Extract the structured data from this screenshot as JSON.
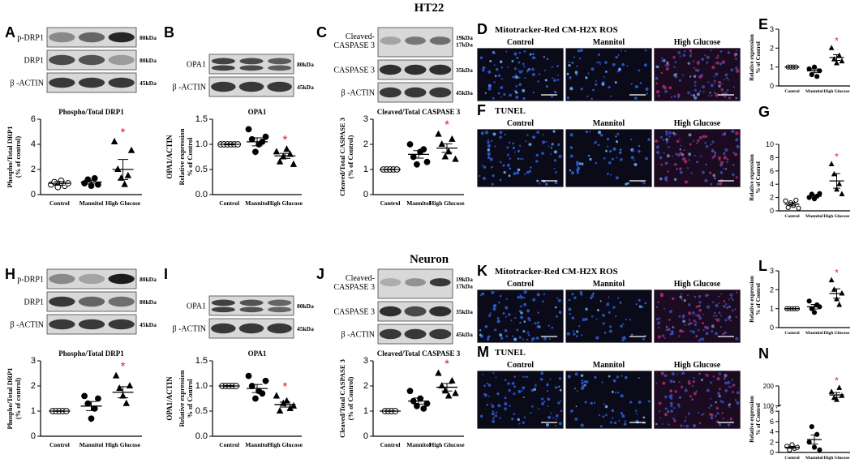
{
  "rows": [
    {
      "title": "HT22",
      "panels": [
        {
          "letter": "A",
          "kind": "blot",
          "bands": [
            {
              "label": "p-DRP1",
              "kda": "80kDa",
              "int": [
                0.35,
                0.55,
                0.9
              ]
            },
            {
              "label": "DRP1",
              "kda": "80kDa",
              "int": [
                0.7,
                0.65,
                0.25
              ]
            },
            {
              "label": "β -ACTIN",
              "kda": "45kDa",
              "int": [
                0.8,
                0.8,
                0.8
              ]
            }
          ]
        },
        {
          "letter": "B",
          "kind": "blot",
          "bands": [
            {
              "label": "OPA1",
              "kda": "80kDa",
              "int": [
                0.75,
                0.7,
                0.6
              ],
              "double": true
            },
            {
              "label": "β -ACTIN",
              "kda": "45kDa",
              "int": [
                0.8,
                0.8,
                0.8
              ]
            }
          ]
        },
        {
          "letter": "C",
          "kind": "blot",
          "bands": [
            {
              "label": "Cleaved-\nCASPASE 3",
              "kda": "19kDa\n17kDa",
              "int": [
                0.2,
                0.45,
                0.5
              ],
              "tall": true
            },
            {
              "label": "CASPASE 3",
              "kda": "35kDa",
              "int": [
                0.85,
                0.85,
                0.85
              ]
            },
            {
              "label": "β -ACTIN",
              "kda": "45kDa",
              "int": [
                0.8,
                0.8,
                0.8
              ]
            }
          ]
        },
        {
          "letter": "D",
          "kind": "image",
          "title": "Mitotracker-Red CM-H2X ROS",
          "cols": [
            "Control",
            "Mannitol",
            "High Glucose"
          ]
        },
        {
          "letter": "E",
          "kind": "mini",
          "ylabel": "Relative expression\n% of Control"
        },
        {
          "letter": "F",
          "kind": "image",
          "title": "TUNEL",
          "cols": [
            "Control",
            "Mannitol",
            "High Glucose"
          ]
        },
        {
          "letter": "G",
          "kind": "mini",
          "ylabel": "Relative expression\n% of Control"
        }
      ],
      "charts": [
        {
          "id": "A",
          "title": "Phospho/Total DRP1",
          "ylabel": "Phospho/Total DRP1\n(% of control)",
          "ylim": [
            0,
            6
          ],
          "yticks": [
            0,
            2,
            4,
            6
          ],
          "categories": [
            "Control",
            "Mannitol",
            "High Glucose"
          ],
          "markers": [
            "circle",
            "circle",
            "triangle"
          ],
          "fill": [
            false,
            true,
            true
          ],
          "values": [
            [
              0.8,
              1.0,
              0.6,
              1.1,
              0.7,
              0.9
            ],
            [
              0.9,
              1.2,
              0.7,
              1.3,
              0.8
            ],
            [
              4.2,
              2.0,
              1.3,
              0.8,
              1.5,
              3.5
            ]
          ],
          "mean": [
            0.9,
            1.0,
            2.0
          ],
          "sem": [
            0.15,
            0.15,
            0.8
          ],
          "star": [
            2
          ]
        },
        {
          "id": "B",
          "title": "OPA1",
          "ylabel": "Relative expression\n% of Control",
          "ylabel2": "OPA1/ACTIN",
          "ylim": [
            0,
            1.5
          ],
          "yticks": [
            "0.0",
            "0.5",
            "1.0",
            "1.5"
          ],
          "categories": [
            "Control",
            "Mannitol",
            "High Glucose"
          ],
          "markers": [
            "circle",
            "circle",
            "triangle"
          ],
          "fill": [
            false,
            true,
            true
          ],
          "values": [
            [
              1,
              1,
              1,
              1,
              1,
              1
            ],
            [
              1.3,
              1.1,
              0.85,
              1.0,
              1.05,
              1.15
            ],
            [
              0.85,
              0.65,
              0.75,
              0.9,
              0.8,
              0.6
            ]
          ],
          "mean": [
            1.0,
            1.05,
            0.77
          ],
          "sem": [
            0.01,
            0.08,
            0.05
          ],
          "star": [
            2
          ]
        },
        {
          "id": "C",
          "title": "Cleaved/Total CASPASE 3",
          "ylabel": "Cleaved/Total CASPASE 3\n(% of Control)",
          "ylim": [
            0,
            3
          ],
          "yticks": [
            0,
            1,
            2,
            3
          ],
          "categories": [
            "Control",
            "Mannitol",
            "High Glucose"
          ],
          "markers": [
            "circle",
            "circle",
            "triangle"
          ],
          "fill": [
            false,
            true,
            true
          ],
          "values": [
            [
              1,
              1,
              1,
              1,
              1
            ],
            [
              2.0,
              1.5,
              1.2,
              1.7,
              1.8,
              1.3
            ],
            [
              2.4,
              2.0,
              1.5,
              1.7,
              2.2,
              1.4
            ]
          ],
          "mean": [
            1.0,
            1.6,
            1.85
          ],
          "sem": [
            0.01,
            0.15,
            0.17
          ],
          "star": [
            2
          ]
        },
        {
          "id": "E",
          "ylabel": "Relative expression\n% of Control",
          "ylim": [
            0,
            3
          ],
          "yticks": [
            0,
            1,
            2,
            3
          ],
          "categories": [
            "Control",
            "Mannitol",
            "High Glucose"
          ],
          "markers": [
            "circle",
            "circle",
            "triangle"
          ],
          "fill": [
            false,
            true,
            true
          ],
          "values": [
            [
              1,
              1,
              1,
              1
            ],
            [
              0.9,
              0.6,
              1.0,
              0.5,
              0.8
            ],
            [
              2.0,
              1.4,
              1.2,
              1.6,
              1.3
            ]
          ],
          "mean": [
            1.0,
            0.8,
            1.5
          ],
          "sem": [
            0.01,
            0.1,
            0.15
          ],
          "star": [
            2
          ]
        },
        {
          "id": "G",
          "ylabel": "Relative expression\n% of Control",
          "ylim": [
            0,
            10
          ],
          "yticks": [
            0,
            2,
            4,
            6,
            8,
            10
          ],
          "categories": [
            "Control",
            "Mannitol",
            "High Glucose"
          ],
          "markers": [
            "circle",
            "circle",
            "triangle"
          ],
          "fill": [
            false,
            true,
            true
          ],
          "values": [
            [
              1.5,
              0.5,
              1.2,
              0.8,
              1.6,
              0.4
            ],
            [
              2.0,
              2.5,
              1.8,
              2.2,
              2.6
            ],
            [
              7.0,
              5.5,
              3.2,
              4.0,
              2.5
            ]
          ],
          "mean": [
            1.0,
            2.2,
            4.5
          ],
          "sem": [
            0.25,
            0.2,
            1.1
          ],
          "star": [
            2
          ]
        }
      ]
    },
    {
      "title": "Neuron",
      "panels": [
        {
          "letter": "H",
          "kind": "blot",
          "bands": [
            {
              "label": "p-DRP1",
              "kda": "80kDa",
              "int": [
                0.35,
                0.2,
                0.95
              ]
            },
            {
              "label": "DRP1",
              "kda": "80kDa",
              "int": [
                0.8,
                0.55,
                0.5
              ]
            },
            {
              "label": "β -ACTIN",
              "kda": "45kDa",
              "int": [
                0.8,
                0.8,
                0.8
              ]
            }
          ]
        },
        {
          "letter": "I",
          "kind": "blot",
          "bands": [
            {
              "label": "OPA1",
              "kda": "80kDa",
              "int": [
                0.75,
                0.65,
                0.55
              ],
              "double": true
            },
            {
              "label": "β -ACTIN",
              "kda": "45kDa",
              "int": [
                0.8,
                0.8,
                0.8
              ]
            }
          ]
        },
        {
          "letter": "J",
          "kind": "blot",
          "bands": [
            {
              "label": "Cleaved-\nCASPASE 3",
              "kda": "19kDa\n17kDa",
              "int": [
                0.15,
                0.3,
                0.8
              ],
              "tall": true
            },
            {
              "label": "CASPASE 3",
              "kda": "35kDa",
              "int": [
                0.85,
                0.7,
                0.85
              ]
            },
            {
              "label": "β -ACTIN",
              "kda": "45kDa",
              "int": [
                0.8,
                0.8,
                0.8
              ]
            }
          ]
        },
        {
          "letter": "K",
          "kind": "image",
          "title": "Mitotracker-Red CM-H2X ROS",
          "cols": [
            "Control",
            "Mannitol",
            "High Glucose"
          ]
        },
        {
          "letter": "L",
          "kind": "mini",
          "ylabel": "Relative expression\n% of Control"
        },
        {
          "letter": "M",
          "kind": "image",
          "title": "TUNEL",
          "cols": [
            "Control",
            "Mannitol",
            "High Glucose"
          ]
        },
        {
          "letter": "N",
          "kind": "mini",
          "ylabel": "Relative expression\n% of Control"
        }
      ],
      "charts": [
        {
          "id": "H",
          "title": "Phospho/Total DRP1",
          "ylabel": "Phospho/Total DRP1\n(% of control)",
          "ylim": [
            0,
            3
          ],
          "yticks": [
            0,
            1,
            2,
            3
          ],
          "categories": [
            "Control",
            "Mannitol",
            "High Glucose"
          ],
          "markers": [
            "circle",
            "circle",
            "triangle"
          ],
          "fill": [
            false,
            true,
            true
          ],
          "values": [
            [
              1,
              1,
              1,
              1,
              1
            ],
            [
              1.6,
              1.3,
              0.7,
              1.1,
              1.5
            ],
            [
              2.4,
              1.9,
              1.6,
              1.3,
              2.0
            ]
          ],
          "mean": [
            1.0,
            1.2,
            1.75
          ],
          "sem": [
            0.01,
            0.18,
            0.22
          ],
          "star": [
            2
          ]
        },
        {
          "id": "I",
          "title": "OPA1",
          "ylabel": "Relative expression\n% of Control",
          "ylabel2": "OPA1/ACTIN",
          "ylim": [
            0,
            1.5
          ],
          "yticks": [
            "0.0",
            "0.5",
            "1.0",
            "1.5"
          ],
          "categories": [
            "Control",
            "Mannitol",
            "High Glucose"
          ],
          "markers": [
            "circle",
            "circle",
            "triangle"
          ],
          "fill": [
            false,
            true,
            true
          ],
          "values": [
            [
              1,
              1,
              1,
              1,
              1
            ],
            [
              1.2,
              1.0,
              0.75,
              0.9,
              0.85,
              1.1
            ],
            [
              0.8,
              0.5,
              0.65,
              0.7,
              0.55,
              0.6
            ]
          ],
          "mean": [
            1.0,
            0.95,
            0.63
          ],
          "sem": [
            0.01,
            0.08,
            0.05
          ],
          "star": [
            2
          ]
        },
        {
          "id": "J",
          "title": "Cleaved/Total CASPASE 3",
          "ylabel": "Cleaved/Total CASPASE 3\n(% of Control)",
          "ylim": [
            0,
            3
          ],
          "yticks": [
            0,
            1,
            2,
            3
          ],
          "categories": [
            "Control",
            "Mannitol",
            "High Glucose"
          ],
          "markers": [
            "circle",
            "circle",
            "triangle"
          ],
          "fill": [
            false,
            true,
            true
          ],
          "values": [
            [
              1,
              1,
              1,
              1
            ],
            [
              1.8,
              1.4,
              1.2,
              1.5,
              1.1,
              1.3
            ],
            [
              2.5,
              2.0,
              1.8,
              1.6,
              2.2,
              1.7
            ]
          ],
          "mean": [
            1.0,
            1.4,
            1.95
          ],
          "sem": [
            0.01,
            0.12,
            0.15
          ],
          "star": [
            2
          ]
        },
        {
          "id": "L",
          "ylabel": "Relative expression\n% of Control",
          "ylim": [
            0,
            3
          ],
          "yticks": [
            0,
            1,
            2,
            3
          ],
          "categories": [
            "Control",
            "Mannitol",
            "High Glucose"
          ],
          "markers": [
            "circle",
            "circle",
            "triangle"
          ],
          "fill": [
            false,
            true,
            true
          ],
          "values": [
            [
              1,
              1,
              1,
              1,
              1
            ],
            [
              1.4,
              1.0,
              0.8,
              1.2,
              1.1
            ],
            [
              2.5,
              2.0,
              1.5,
              1.2,
              1.8
            ]
          ],
          "mean": [
            1.0,
            1.1,
            1.8
          ],
          "sem": [
            0.01,
            0.12,
            0.25
          ],
          "star": [
            2
          ]
        },
        {
          "id": "N",
          "ylabel": "Relative expression\n% of Control",
          "broken": true,
          "ylim": [
            0,
            8
          ],
          "yticks": [
            0,
            2,
            4,
            6,
            8
          ],
          "ytop": [
            100,
            200
          ],
          "categories": [
            "Control",
            "Mannitol",
            "High Glucose"
          ],
          "markers": [
            "circle",
            "circle",
            "triangle"
          ],
          "fill": [
            false,
            true,
            true
          ],
          "values": [
            [
              1.2,
              0.5,
              1.5,
              0.8,
              1.0
            ],
            [
              2.0,
              5.0,
              1.0,
              3.5,
              0.5
            ],
            [
              170,
              140,
              130,
              190,
              150
            ]
          ],
          "mean": [
            1.0,
            2.5,
            155
          ],
          "sem": [
            0.2,
            0.9,
            12
          ],
          "star": [
            2
          ]
        }
      ]
    }
  ],
  "star_color": "#e02020"
}
